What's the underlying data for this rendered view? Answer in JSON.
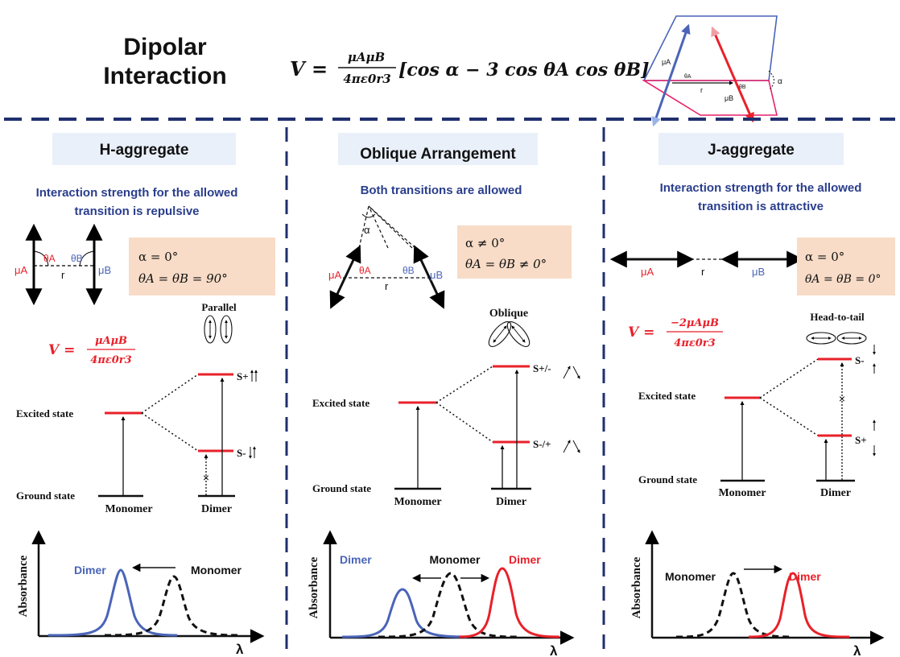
{
  "header": {
    "title_line1": "Dipolar",
    "title_line2": "Interaction",
    "formula_lhs": "V =",
    "formula_num": "μAμB",
    "formula_den": "4πε0r3",
    "formula_bracket": "[cos α − 3 cos θA cos θB]",
    "inset_labels": {
      "mu_a": "μA",
      "mu_b": "μB",
      "theta_a": "θA",
      "theta_b": "θB",
      "r": "r",
      "alpha": "α"
    }
  },
  "panels": [
    {
      "title": "H-aggregate",
      "subtitle_line1": "Interaction strength for the allowed",
      "subtitle_line2": "transition is repulsive",
      "dipole_labels": {
        "mu_a": "μA",
        "mu_b": "μB",
        "theta_a": "θA",
        "theta_b": "θB",
        "r": "r"
      },
      "condition_line1": "α = 0°",
      "condition_line2": "θA = θB = 90°",
      "energy_formula_num": "μAμB",
      "energy_formula_den": "4πε0r3",
      "energy_formula_lhs": "V =",
      "arrangement_label": "Parallel",
      "excited_state": "Excited state",
      "ground_state": "Ground state",
      "monomer": "Monomer",
      "dimer": "Dimer",
      "upper_state": "S+",
      "lower_state": "S-",
      "forbidden_mark": "×",
      "spectrum": {
        "ylabel": "Absorbance",
        "xlabel": "λ",
        "dimer_label": "Dimer",
        "monomer_label": "Monomer"
      }
    },
    {
      "title": "Oblique Arrangement",
      "subtitle_line1": "Both transitions are allowed",
      "dipole_labels": {
        "mu_a": "μA",
        "mu_b": "μB",
        "theta_a": "θA",
        "theta_b": "θB",
        "r": "r",
        "alpha": "α"
      },
      "condition_line1": "α ≠ 0°",
      "condition_line2": "θA = θB ≠ 0°",
      "arrangement_label": "Oblique",
      "excited_state": "Excited state",
      "ground_state": "Ground state",
      "monomer": "Monomer",
      "dimer": "Dimer",
      "upper_state": "S+/-",
      "lower_state": "S-/+",
      "spectrum": {
        "ylabel": "Absorbance",
        "xlabel": "λ",
        "dimer_left_label": "Dimer",
        "monomer_label": "Monomer",
        "dimer_right_label": "Dimer"
      }
    },
    {
      "title": "J-aggregate",
      "subtitle_line1": "Interaction strength for the allowed",
      "subtitle_line2": "transition is attractive",
      "dipole_labels": {
        "mu_a": "μA",
        "mu_b": "μB",
        "r": "r"
      },
      "condition_line1": "α = 0°",
      "condition_line2": "θA = θB = 0°",
      "energy_formula_num": "−2μAμB",
      "energy_formula_den": "4πε0r3",
      "energy_formula_lhs": "V =",
      "arrangement_label": "Head-to-tail",
      "excited_state": "Excited state",
      "ground_state": "Ground state",
      "monomer": "Monomer",
      "dimer": "Dimer",
      "upper_state": "S-",
      "lower_state": "S+",
      "forbidden_mark": "×",
      "spectrum": {
        "ylabel": "Absorbance",
        "xlabel": "λ",
        "monomer_label": "Monomer",
        "dimer_label": "Dimer"
      }
    }
  ],
  "colors": {
    "navy": "#1f2f6e",
    "red": "#e8212a",
    "blue": "#4a64b8",
    "title_box": "#e9f0fa",
    "condition_box": "#f8dcc7"
  }
}
